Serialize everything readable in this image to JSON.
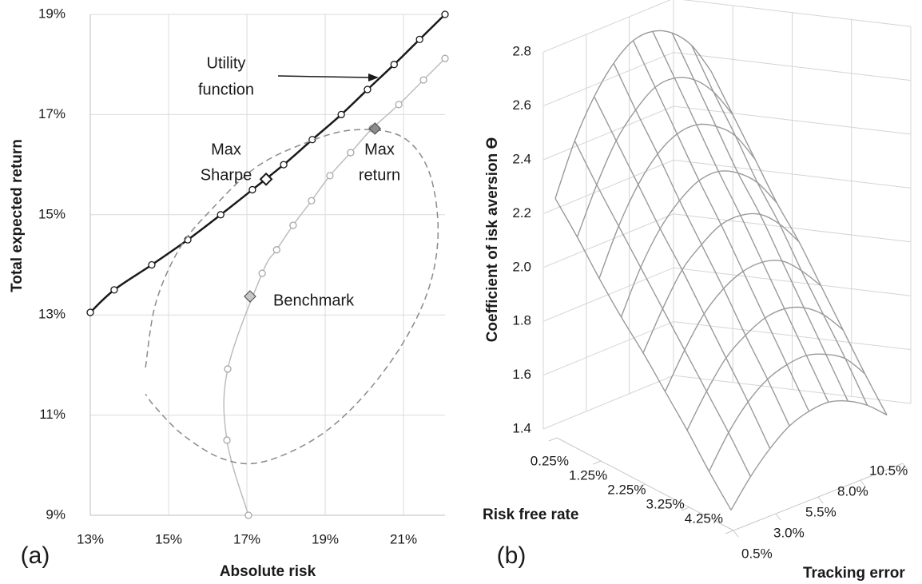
{
  "chart_data": [
    {
      "type": "line",
      "panel_label": "(a)",
      "x_label": "Absolute risk",
      "y_label": "Total expected return",
      "xlim": [
        13,
        22.06
      ],
      "ylim": [
        9,
        19
      ],
      "grid": true,
      "xticks": [
        {
          "value": 13,
          "label": "13%"
        },
        {
          "value": 15,
          "label": "15%"
        },
        {
          "value": 17,
          "label": "17%"
        },
        {
          "value": 19,
          "label": "19%"
        },
        {
          "value": 21,
          "label": "21%"
        }
      ],
      "yticks": [
        {
          "value": 9,
          "label": "9%"
        },
        {
          "value": 11,
          "label": "11%"
        },
        {
          "value": 13,
          "label": "13%"
        },
        {
          "value": 15,
          "label": "15%"
        },
        {
          "value": 17,
          "label": "17%"
        },
        {
          "value": 19,
          "label": "19%"
        }
      ],
      "series": [
        {
          "color": "#1a1a1a",
          "marker": "circle",
          "x": [
            13,
            13.61,
            14.57,
            15.49,
            16.33,
            17.14,
            17.94,
            18.67,
            19.41,
            20.08,
            20.76,
            21.41,
            22.06
          ],
          "y": [
            13.05,
            13.5,
            14,
            14.5,
            15,
            15.5,
            16,
            16.5,
            17,
            17.5,
            18,
            18.5,
            19
          ]
        },
        {
          "color": "#bdbdbd",
          "marker": "circle",
          "x": [
            17.04,
            16.49,
            16.51,
            17.39,
            17.76,
            18.18,
            18.65,
            19.12,
            19.65,
            20.2,
            20.88,
            21.51,
            22.06
          ],
          "y": [
            9,
            10.5,
            11.92,
            13.83,
            14.3,
            14.79,
            15.28,
            15.78,
            16.24,
            16.72,
            17.2,
            17.69,
            18.12
          ]
        },
        {
          "color": "#8a8a8a",
          "dash": true,
          "x": [
            14.41,
            14.67,
            15.29,
            16.1,
            17.22,
            18.45,
            19.67,
            20.9,
            21.61,
            21.88,
            21.71,
            21.1,
            20.08,
            18.86,
            17.43,
            16.41,
            15.39,
            14.67,
            14.41
          ],
          "y": [
            11.95,
            13.23,
            14.34,
            15.11,
            15.94,
            16.42,
            16.69,
            16.58,
            15.94,
            14.82,
            13.7,
            12.59,
            11.47,
            10.59,
            10.07,
            10.12,
            10.59,
            11.15,
            11.42
          ]
        }
      ],
      "points": [
        {
          "label": [
            "Max",
            "Sharpe"
          ],
          "x": 17.49,
          "y": 15.71,
          "color": "#ffffff"
        },
        {
          "label": [
            "Max",
            "return"
          ],
          "x": 20.27,
          "y": 16.72,
          "color": "#8c8c8c"
        },
        {
          "label": [
            "Benchmark"
          ],
          "x": 17.08,
          "y": 13.37,
          "color": "#c8c8c8"
        }
      ],
      "annotations": [
        {
          "text": [
            "Utility",
            "function"
          ]
        }
      ]
    },
    {
      "type": "surface",
      "panel_label": "(b)",
      "x_label": "Tracking error",
      "y_label": "Risk free rate",
      "z_label": "Coefficient of isk aversion ϴ",
      "color": "#9a9a9a",
      "xlim": [
        0.5,
        10.5
      ],
      "ylim": [
        0.25,
        4.25
      ],
      "zlim": [
        1.4,
        2.8
      ],
      "xticks": [
        {
          "value": 0.5,
          "label": "0.5%"
        },
        {
          "value": 3,
          "label": "3.0%"
        },
        {
          "value": 5.5,
          "label": "5.5%"
        },
        {
          "value": 8,
          "label": "8.0%"
        },
        {
          "value": 10.5,
          "label": "10.5%"
        }
      ],
      "yticks": [
        {
          "value": 0.25,
          "label": "0.25%"
        },
        {
          "value": 1.25,
          "label": "1.25%"
        },
        {
          "value": 2.25,
          "label": "2.25%"
        },
        {
          "value": 3.25,
          "label": "3.25%"
        },
        {
          "value": 4.25,
          "label": "4.25%"
        }
      ],
      "zticks": [
        1.4,
        1.6,
        1.8,
        {
          "value": 2,
          "label": "2.0"
        },
        2.2,
        2.4,
        2.6,
        2.8
      ],
      "x": [
        0.5,
        1.75,
        3,
        4.25,
        5.5,
        6.75,
        8,
        9.25,
        10.5
      ],
      "y": [
        0.25,
        0.75,
        1.25,
        1.75,
        2.25,
        2.75,
        3.25,
        3.75,
        4.25
      ],
      "z": [
        [
          2.28,
          2.47,
          2.61,
          2.71,
          2.77,
          2.78,
          2.75,
          2.68,
          2.56
        ],
        [
          2.18,
          2.35,
          2.49,
          2.58,
          2.64,
          2.65,
          2.62,
          2.55,
          2.44
        ],
        [
          2.07,
          2.24,
          2.37,
          2.46,
          2.51,
          2.52,
          2.49,
          2.43,
          2.32
        ],
        [
          1.97,
          2.13,
          2.25,
          2.33,
          2.38,
          2.39,
          2.36,
          2.3,
          2.2
        ],
        [
          1.88,
          2.02,
          2.14,
          2.21,
          2.26,
          2.27,
          2.25,
          2.19,
          2.1
        ],
        [
          1.78,
          1.91,
          2.02,
          2.09,
          2.13,
          2.14,
          2.12,
          2.06,
          1.98
        ],
        [
          1.68,
          1.8,
          1.9,
          1.96,
          2,
          2.01,
          1.99,
          1.94,
          1.86
        ],
        [
          1.57,
          1.69,
          1.78,
          1.84,
          1.87,
          1.88,
          1.86,
          1.82,
          1.74
        ],
        [
          1.47,
          1.57,
          1.65,
          1.71,
          1.74,
          1.75,
          1.73,
          1.69,
          1.63
        ]
      ]
    }
  ]
}
